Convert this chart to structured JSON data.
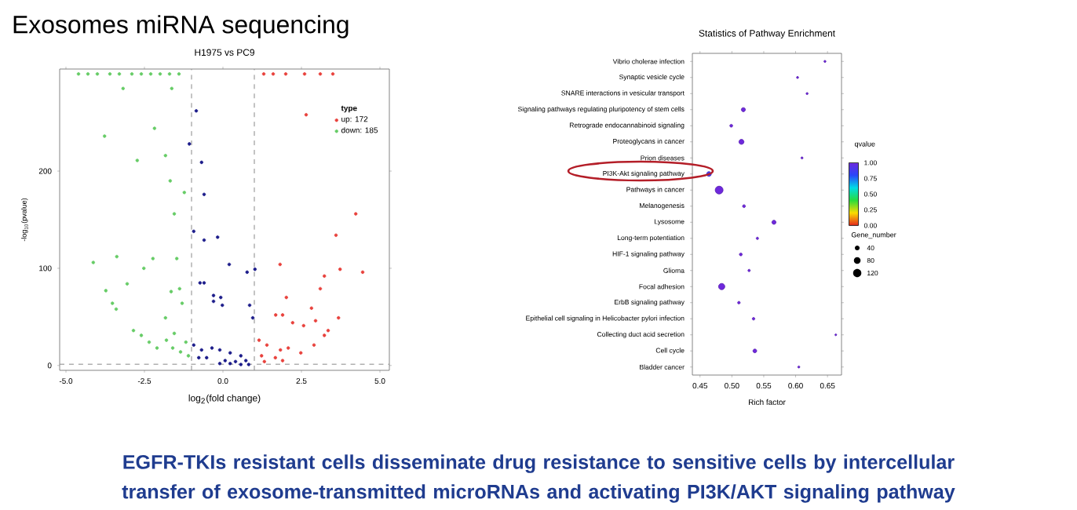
{
  "chart_data": [
    {
      "type": "scatter",
      "title": "Exosomes miRNA sequencing",
      "subtitle": "H1975 vs PC9",
      "xlabel": "log$_{2}$(fold change)",
      "ylabel": "-log$_{10}$(pvalue)",
      "legend_title": "type",
      "legend": "top right",
      "marker": "circle",
      "xlim": [
        -5.2,
        5.3
      ],
      "ylim": [
        -5,
        305
      ],
      "xticks": [
        {
          "value": -5,
          "label": "-5.0"
        },
        {
          "value": -2.5,
          "label": "-2.5"
        },
        {
          "value": 0,
          "label": "0.0"
        },
        {
          "value": 2.5,
          "label": "2.5"
        },
        {
          "value": 5,
          "label": "5.0"
        }
      ],
      "yticks": [
        0,
        100,
        200
      ],
      "ref_lines": [
        {
          "axis": "x",
          "value": -1,
          "color": "#888888",
          "line_style": "dashed"
        },
        {
          "axis": "x",
          "value": 1,
          "color": "#888888",
          "line_style": "dashed"
        },
        {
          "axis": "y",
          "value": 1.3,
          "color": "#888888",
          "line_style": "dashed"
        }
      ],
      "series": [
        {
          "name": "up: 172",
          "color": "#e8413c",
          "x": [
            2.65,
            4.23,
            3.6,
            3.73,
            4.45,
            3.23,
            3.1,
            2.02,
            1.82,
            2.82,
            1.68,
            1.9,
            3.68,
            2.95,
            2.22,
            2.57,
            3.35,
            3.23,
            1.15,
            1.4,
            1.83,
            2.08,
            2.9,
            2.48,
            1.23,
            1.67,
            1.9,
            1.32,
            1.3,
            1.6,
            2.0,
            2.6,
            3.1,
            3.5
          ],
          "values": [
            258,
            156,
            134,
            99,
            96,
            92,
            79,
            70,
            104,
            59,
            52,
            52,
            49,
            46,
            44,
            41,
            36,
            31,
            26,
            21,
            16,
            18,
            21,
            13,
            10,
            8,
            5,
            4,
            300,
            300,
            300,
            300,
            300,
            300
          ]
        },
        {
          "name": "down: 185",
          "color": "#66cc66",
          "x": [
            -3.18,
            -1.63,
            -3.77,
            -2.18,
            -2.73,
            -1.83,
            -1.68,
            -1.23,
            -1.55,
            -4.13,
            -3.38,
            -2.23,
            -1.47,
            -2.52,
            -3.05,
            -3.73,
            -1.65,
            -1.38,
            -3.52,
            -3.4,
            -1.3,
            -1.83,
            -2.85,
            -2.6,
            -2.35,
            -2.1,
            -1.8,
            -1.55,
            -1.6,
            -1.18,
            -1.1,
            -1.35,
            -4.6,
            -4.3,
            -4.0,
            -3.6,
            -3.3,
            -2.9,
            -2.6,
            -2.3,
            -2.0,
            -1.7,
            -1.4
          ],
          "values": [
            285,
            285,
            236,
            244,
            211,
            216,
            190,
            178,
            156,
            106,
            112,
            110,
            110,
            100,
            84,
            77,
            76,
            79,
            64,
            58,
            64,
            49,
            36,
            31,
            24,
            18,
            26,
            33,
            18,
            24,
            10,
            14,
            300,
            300,
            300,
            300,
            300,
            300,
            300,
            300,
            300,
            300,
            300
          ]
        },
        {
          "color": "#1c1c8a",
          "x": [
            -0.85,
            -1.07,
            -0.68,
            -0.6,
            -0.93,
            -0.6,
            -0.17,
            0.2,
            0.77,
            1.02,
            -0.73,
            -0.6,
            -0.3,
            -0.07,
            -0.3,
            -0.02,
            0.85,
            0.95,
            -0.93,
            -0.68,
            -0.35,
            -0.1,
            0.23,
            0.57,
            -0.52,
            0.07,
            0.4,
            0.73,
            -0.1,
            0.23,
            0.57,
            0.82,
            -0.77
          ],
          "values": [
            262,
            228,
            209,
            176,
            138,
            129,
            132,
            104,
            96,
            99,
            85,
            85,
            72,
            70,
            66,
            62,
            62,
            49,
            21,
            16,
            18,
            16,
            13,
            10,
            8,
            5,
            4,
            5,
            2,
            2,
            1,
            1,
            8
          ]
        }
      ],
      "annotations": [
        "EGFR-TKIs resistant cells disseminate drug resistance to sensitive cells by intercellular transfer of exosome-transmitted microRNAs and activating PI3K/AKT signaling pathway"
      ]
    },
    {
      "type": "bubble",
      "title": "Statistics of Pathway Enrichment",
      "xlabel": "Rich factor",
      "orientation": "horizontal",
      "marker": "circle",
      "legend_title": "Gene_number",
      "clabel": "qvalue",
      "categories": [
        "Vibrio cholerae infection",
        "Synaptic vesicle cycle",
        "SNARE interactions in vesicular transport",
        "Signaling pathways regulating pluripotency of stem cells",
        "Retrograde endocannabinoid signaling",
        "Proteoglycans in cancer",
        "Prion diseases",
        "PI3K-Akt signaling pathway",
        "Pathways in cancer",
        "Melanogenesis",
        "Lysosome",
        "Long-term potentiation",
        "HIF-1 signaling pathway",
        "Glioma",
        "Focal adhesion",
        "ErbB signaling pathway",
        "Epithelial cell signaling in Helicobacter pylori infection",
        "Collecting duct acid secretion",
        "Cell cycle",
        "Bladder cancer"
      ],
      "values": [
        0.646,
        0.603,
        0.618,
        0.518,
        0.499,
        0.515,
        0.61,
        0.464,
        0.48,
        0.519,
        0.566,
        0.54,
        0.514,
        0.527,
        0.484,
        0.511,
        0.534,
        0.663,
        0.536,
        0.605
      ],
      "sizes": [
        8,
        8,
        8,
        30,
        15,
        45,
        8,
        40,
        110,
        15,
        30,
        10,
        15,
        10,
        70,
        12,
        12,
        6,
        25,
        8
      ],
      "size_legend": [
        40,
        80,
        120
      ],
      "cvalues": [
        1,
        1,
        1,
        1,
        1,
        1,
        1,
        0.9,
        1,
        1,
        1,
        1,
        1,
        1,
        1,
        1,
        1,
        1,
        1,
        1
      ],
      "clim": [
        0,
        1
      ],
      "cticks": [
        {
          "value": 0,
          "label": "0.00"
        },
        {
          "value": 0.25,
          "label": "0.25"
        },
        {
          "value": 0.5,
          "label": "0.50"
        },
        {
          "value": 0.75,
          "label": "0.75"
        },
        {
          "value": 1,
          "label": "1.00"
        }
      ],
      "xlim": [
        0.438,
        0.672
      ],
      "xticks": [
        {
          "value": 0.45,
          "label": "0.45"
        },
        {
          "value": 0.5,
          "label": "0.50"
        },
        {
          "value": 0.55,
          "label": "0.55"
        },
        {
          "value": 0.6,
          "label": "0.60"
        },
        {
          "value": 0.65,
          "label": "0.65"
        }
      ]
    }
  ]
}
